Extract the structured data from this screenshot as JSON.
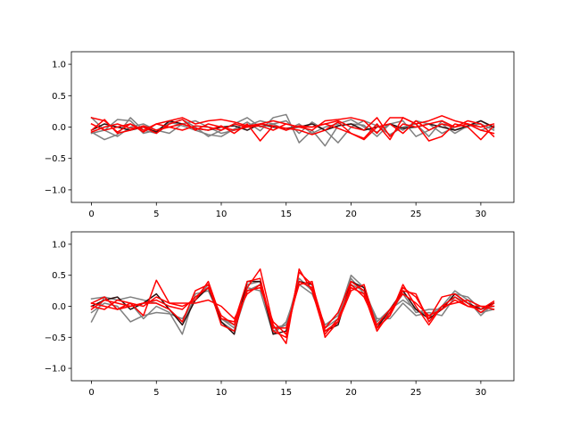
{
  "chart_data": [
    {
      "type": "line",
      "title": "",
      "xlabel": "",
      "ylabel": "",
      "xlim": [
        -1.55,
        32.55
      ],
      "ylim": [
        -1.2,
        1.2
      ],
      "xticks": [
        0,
        5,
        10,
        15,
        20,
        25,
        30
      ],
      "yticks": [
        -1.0,
        -0.5,
        0.0,
        0.5,
        1.0
      ],
      "grid": false,
      "legend": "none",
      "series": [
        {
          "color": "#808080",
          "values": [
            -0.08,
            -0.2,
            -0.12,
            0.15,
            -0.05,
            -0.1,
            0.08,
            0.02,
            -0.05,
            -0.12,
            -0.15,
            -0.03,
            0.08,
            -0.06,
            0.15,
            0.2,
            -0.25,
            -0.05,
            -0.3,
            0.02,
            0.05,
            0.03,
            -0.15,
            0.05,
            0.1,
            -0.15,
            -0.05,
            0.05,
            -0.1,
            0.02,
            0.05,
            -0.05
          ]
        },
        {
          "color": "#808080",
          "values": [
            0.15,
            -0.05,
            0.12,
            0.1,
            -0.1,
            -0.05,
            0.05,
            0.12,
            0.0,
            -0.15,
            -0.05,
            0.05,
            0.15,
            0.0,
            0.05,
            0.1,
            -0.1,
            0.08,
            -0.05,
            -0.25,
            0.0,
            0.1,
            0.02,
            -0.12,
            0.0,
            0.05,
            -0.15,
            0.1,
            -0.05,
            0.0,
            0.1,
            -0.02
          ]
        },
        {
          "color": "#808080",
          "values": [
            -0.1,
            -0.05,
            -0.15,
            0.0,
            0.05,
            -0.05,
            -0.1,
            0.05,
            0.1,
            0.0,
            -0.1,
            -0.05,
            0.02,
            0.1,
            0.05,
            -0.05,
            0.05,
            -0.1,
            0.0,
            0.05,
            0.12,
            0.0,
            -0.08,
            0.05,
            -0.05,
            0.1,
            0.05,
            -0.1,
            0.0,
            0.05,
            -0.05,
            0.02
          ]
        },
        {
          "color": "#2a1010",
          "values": [
            -0.05,
            0.05,
            0.0,
            -0.05,
            0.0,
            -0.08,
            0.1,
            0.05,
            -0.02,
            -0.05,
            0.0,
            0.02,
            -0.05,
            0.05,
            0.0,
            -0.02,
            0.0,
            0.05,
            -0.05,
            0.02,
            0.05,
            -0.05,
            0.0,
            0.05,
            -0.02,
            0.0,
            0.05,
            0.0,
            -0.05,
            0.02,
            0.1,
            0.0
          ]
        },
        {
          "color": "#ff0000",
          "values": [
            0.15,
            0.1,
            -0.08,
            0.05,
            -0.05,
            0.05,
            0.1,
            0.15,
            0.05,
            0.1,
            0.12,
            0.08,
            0.02,
            0.05,
            0.1,
            0.05,
            0.0,
            -0.05,
            0.1,
            0.12,
            0.15,
            0.1,
            -0.1,
            0.15,
            0.15,
            0.05,
            0.1,
            0.18,
            0.1,
            0.05,
            0.0,
            0.05
          ]
        },
        {
          "color": "#ff0000",
          "values": [
            -0.05,
            0.12,
            -0.1,
            -0.05,
            0.02,
            -0.05,
            0.0,
            0.05,
            -0.02,
            -0.05,
            0.02,
            -0.1,
            0.05,
            -0.22,
            0.02,
            -0.02,
            -0.05,
            -0.12,
            -0.05,
            0.08,
            -0.1,
            -0.18,
            0.05,
            -0.2,
            0.15,
            0.05,
            -0.22,
            -0.15,
            0.05,
            0.0,
            -0.2,
            0.02
          ]
        },
        {
          "color": "#ff0000",
          "values": [
            -0.08,
            0.0,
            0.05,
            -0.02,
            0.0,
            -0.1,
            0.05,
            0.12,
            -0.05,
            0.05,
            0.0,
            -0.05,
            0.0,
            0.05,
            0.02,
            -0.05,
            0.02,
            0.0,
            0.05,
            0.1,
            0.0,
            -0.05,
            0.15,
            -0.15,
            0.05,
            0.0,
            0.05,
            0.1,
            0.0,
            0.05,
            -0.05,
            -0.1
          ]
        },
        {
          "color": "#ff0000",
          "values": [
            0.05,
            -0.05,
            0.0,
            0.05,
            -0.08,
            0.05,
            0.0,
            -0.05,
            0.02,
            0.0,
            -0.05,
            0.05,
            0.0,
            0.02,
            -0.05,
            0.05,
            0.0,
            0.0,
            0.05,
            -0.02,
            -0.1,
            -0.2,
            0.0,
            0.05,
            -0.1,
            0.1,
            -0.05,
            0.05,
            0.0,
            0.1,
            0.05,
            -0.15
          ]
        }
      ]
    },
    {
      "type": "line",
      "title": "",
      "xlabel": "",
      "ylabel": "",
      "xlim": [
        -1.55,
        32.55
      ],
      "ylim": [
        -1.2,
        1.2
      ],
      "xticks": [
        0,
        5,
        10,
        15,
        20,
        25,
        30
      ],
      "yticks": [
        -1.0,
        -0.5,
        0.0,
        0.5,
        1.0
      ],
      "grid": false,
      "legend": "none",
      "series": [
        {
          "color": "#808080",
          "values": [
            -0.25,
            0.15,
            -0.05,
            0.05,
            -0.2,
            0.0,
            -0.1,
            -0.45,
            0.2,
            0.25,
            -0.2,
            -0.35,
            0.3,
            0.25,
            -0.45,
            -0.25,
            0.35,
            0.2,
            -0.3,
            -0.15,
            0.5,
            0.3,
            -0.25,
            -0.05,
            0.1,
            -0.05,
            -0.15,
            0.0,
            0.25,
            0.1,
            -0.15,
            0.05
          ]
        },
        {
          "color": "#808080",
          "values": [
            0.12,
            0.15,
            0.1,
            0.15,
            0.1,
            0.05,
            -0.05,
            -0.25,
            0.15,
            0.3,
            -0.25,
            -0.4,
            0.25,
            0.35,
            -0.4,
            -0.3,
            0.4,
            0.3,
            -0.35,
            -0.2,
            0.45,
            0.2,
            -0.3,
            -0.1,
            0.2,
            -0.1,
            -0.05,
            -0.05,
            0.2,
            0.15,
            -0.05,
            0.0
          ]
        },
        {
          "color": "#808080",
          "values": [
            -0.1,
            0.05,
            0.0,
            -0.25,
            -0.15,
            -0.1,
            -0.12,
            -0.2,
            0.1,
            0.35,
            -0.2,
            -0.3,
            0.35,
            0.4,
            -0.35,
            -0.3,
            0.45,
            0.25,
            -0.4,
            -0.25,
            0.35,
            0.25,
            -0.2,
            -0.2,
            0.05,
            -0.15,
            -0.1,
            -0.15,
            0.15,
            0.05,
            -0.1,
            -0.05
          ]
        },
        {
          "color": "#2a1010",
          "values": [
            0.0,
            0.1,
            0.15,
            -0.05,
            0.05,
            0.2,
            -0.05,
            -0.3,
            0.1,
            0.3,
            -0.25,
            -0.45,
            0.4,
            0.4,
            -0.45,
            -0.4,
            0.4,
            0.35,
            -0.4,
            -0.3,
            0.4,
            0.3,
            -0.35,
            -0.05,
            0.25,
            -0.05,
            -0.2,
            -0.05,
            0.2,
            0.05,
            -0.05,
            0.05
          ]
        },
        {
          "color": "#ff0000",
          "values": [
            0.05,
            0.15,
            -0.05,
            0.05,
            -0.15,
            0.42,
            0.05,
            0.0,
            0.1,
            0.4,
            -0.2,
            -0.25,
            0.4,
            0.45,
            -0.4,
            -0.5,
            0.55,
            0.35,
            -0.35,
            -0.1,
            0.4,
            0.25,
            -0.35,
            -0.15,
            0.35,
            0.0,
            -0.3,
            0.0,
            0.15,
            0.0,
            -0.05,
            0.08
          ]
        },
        {
          "color": "#ff0000",
          "values": [
            -0.05,
            0.1,
            0.05,
            0.0,
            0.05,
            0.05,
            -0.05,
            -0.25,
            0.25,
            0.35,
            -0.3,
            -0.4,
            0.3,
            0.6,
            -0.3,
            -0.6,
            0.6,
            0.25,
            -0.45,
            -0.2,
            0.3,
            0.2,
            -0.4,
            -0.1,
            0.3,
            0.15,
            -0.2,
            0.15,
            0.2,
            0.05,
            -0.1,
            0.05
          ]
        },
        {
          "color": "#ff0000",
          "values": [
            0.0,
            -0.05,
            0.1,
            0.05,
            0.0,
            0.15,
            0.05,
            0.05,
            0.05,
            0.1,
            0.0,
            -0.2,
            0.2,
            0.35,
            -0.35,
            -0.35,
            0.35,
            0.4,
            -0.5,
            -0.25,
            0.35,
            0.15,
            -0.3,
            -0.05,
            0.2,
            0.05,
            -0.15,
            -0.05,
            0.1,
            0.0,
            0.0,
            -0.05
          ]
        },
        {
          "color": "#ff0000",
          "values": [
            0.05,
            0.0,
            -0.05,
            0.0,
            0.05,
            0.1,
            0.0,
            -0.05,
            0.15,
            0.3,
            -0.15,
            -0.3,
            0.25,
            0.3,
            -0.25,
            -0.45,
            0.4,
            0.3,
            -0.4,
            -0.25,
            0.25,
            0.35,
            -0.35,
            -0.15,
            0.25,
            0.2,
            -0.25,
            0.0,
            0.05,
            0.1,
            0.0,
            0.0
          ]
        }
      ]
    }
  ]
}
